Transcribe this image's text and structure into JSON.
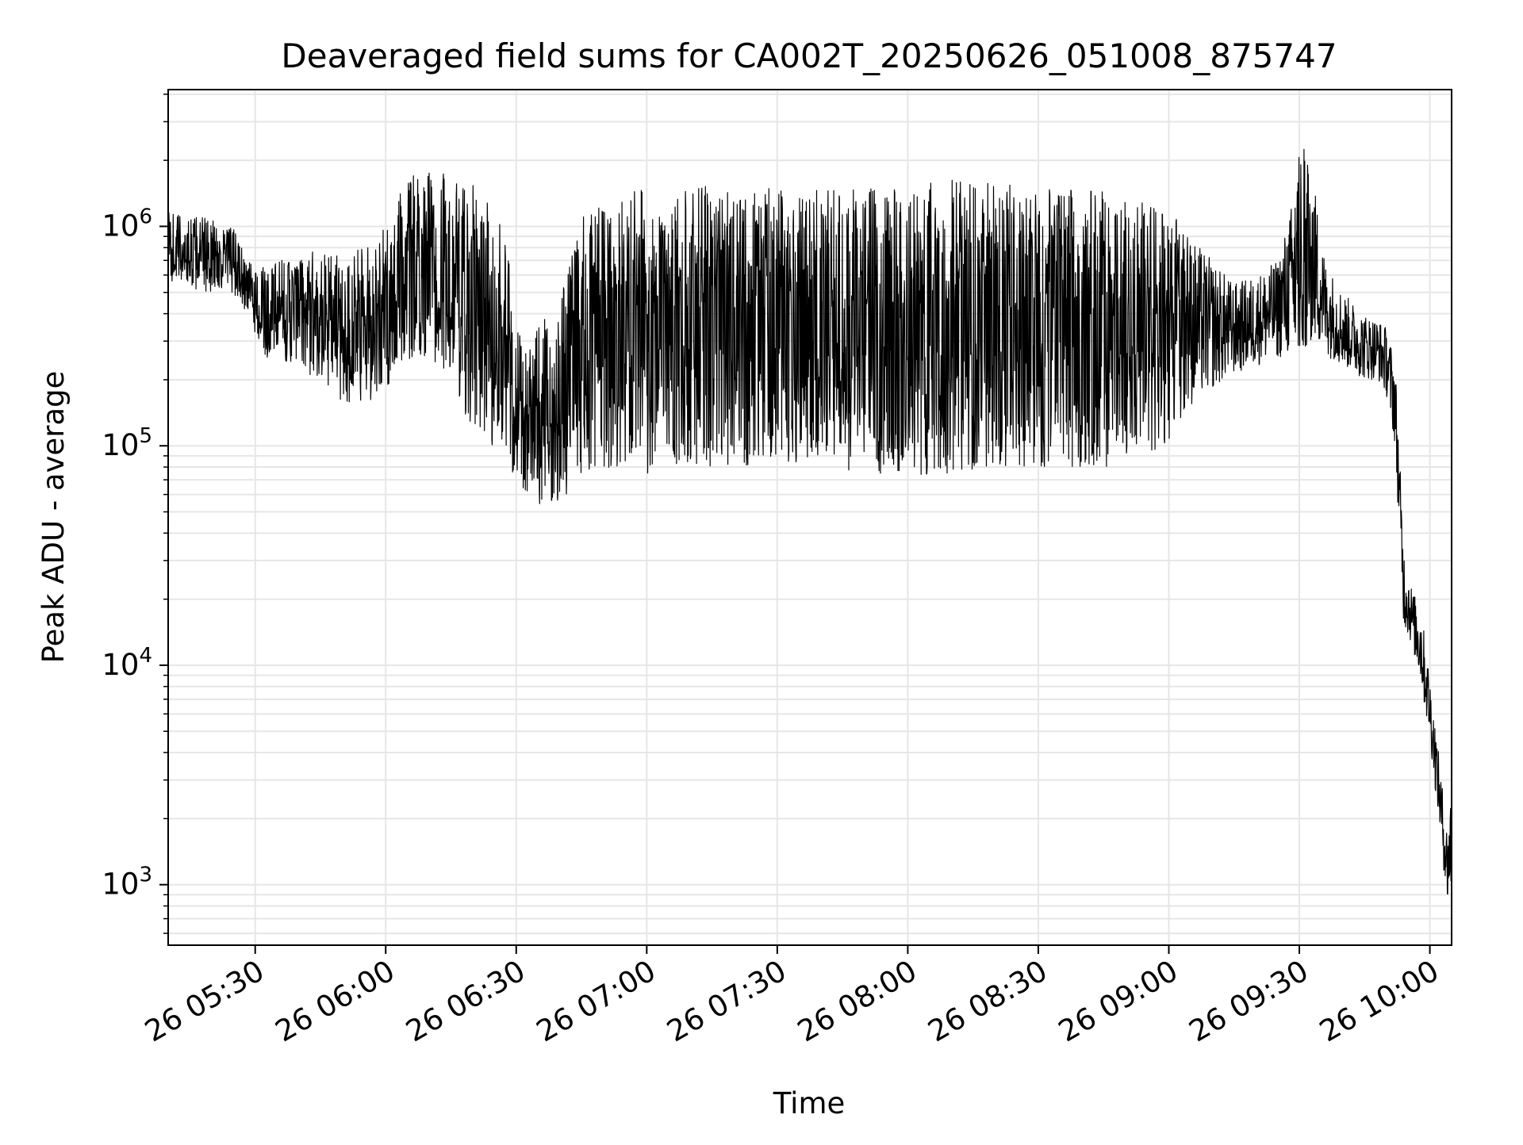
{
  "chart_data": {
    "type": "line",
    "title": "Deaveraged field sums for CA002T_20250626_051008_875747",
    "xlabel": "Time",
    "ylabel": "Peak ADU - average",
    "y_scale": "log",
    "grid": true,
    "legend": "none",
    "line_color": "#000000",
    "grid_color": "#e6e6e6",
    "x_ticks": [
      "2025-06-26 05:30",
      "2025-06-26 06:00",
      "2025-06-26 06:30",
      "2025-06-26 07:00",
      "2025-06-26 07:30",
      "2025-06-26 08:00",
      "2025-06-26 08:30",
      "2025-06-26 09:00",
      "2025-06-26 09:30",
      "2025-06-26 10:00"
    ],
    "x_tick_labels": [
      "26 05:30",
      "26 06:00",
      "26 06:30",
      "26 07:00",
      "26 07:30",
      "26 08:00",
      "26 08:30",
      "26 09:00",
      "26 09:30",
      "26 10:00"
    ],
    "y_ticks": [
      1000,
      10000,
      100000,
      1000000
    ],
    "y_tick_labels": [
      {
        "base": "10",
        "exp": "3"
      },
      {
        "base": "10",
        "exp": "4"
      },
      {
        "base": "10",
        "exp": "5"
      },
      {
        "base": "10",
        "exp": "6"
      }
    ],
    "xlim": [
      "2025-06-26 05:10",
      "2025-06-26 10:05"
    ],
    "ylim": [
      530,
      4200000
    ],
    "series": [
      {
        "x": [
          "2025-06-26 05:10",
          "2025-06-26 05:15",
          "2025-06-26 05:20",
          "2025-06-26 05:25",
          "2025-06-26 05:28",
          "2025-06-26 05:32",
          "2025-06-26 05:36",
          "2025-06-26 05:40",
          "2025-06-26 05:45",
          "2025-06-26 05:50",
          "2025-06-26 05:55",
          "2025-06-26 06:00",
          "2025-06-26 06:05",
          "2025-06-26 06:10",
          "2025-06-26 06:15",
          "2025-06-26 06:20",
          "2025-06-26 06:25",
          "2025-06-26 06:28",
          "2025-06-26 06:31",
          "2025-06-26 06:35",
          "2025-06-26 06:40",
          "2025-06-26 06:45",
          "2025-06-26 06:50",
          "2025-06-26 07:00",
          "2025-06-26 07:10",
          "2025-06-26 07:20",
          "2025-06-26 07:30",
          "2025-06-26 07:40",
          "2025-06-26 07:50",
          "2025-06-26 08:00",
          "2025-06-26 08:10",
          "2025-06-26 08:20",
          "2025-06-26 08:30",
          "2025-06-26 08:40",
          "2025-06-26 08:50",
          "2025-06-26 09:00",
          "2025-06-26 09:05",
          "2025-06-26 09:10",
          "2025-06-26 09:15",
          "2025-06-26 09:20",
          "2025-06-26 09:25",
          "2025-06-26 09:28",
          "2025-06-26 09:30",
          "2025-06-26 09:33",
          "2025-06-26 09:36",
          "2025-06-26 09:40",
          "2025-06-26 09:45",
          "2025-06-26 09:48",
          "2025-06-26 09:50",
          "2025-06-26 09:52",
          "2025-06-26 09:54",
          "2025-06-26 09:56",
          "2025-06-26 09:58",
          "2025-06-26 10:00",
          "2025-06-26 10:02",
          "2025-06-26 10:04",
          "2025-06-26 10:05"
        ],
        "low": [
          550000,
          520000,
          500000,
          480000,
          400000,
          250000,
          250000,
          220000,
          200000,
          150000,
          150000,
          180000,
          250000,
          250000,
          200000,
          110000,
          100000,
          85000,
          60000,
          50000,
          55000,
          70000,
          80000,
          75000,
          80000,
          80000,
          80000,
          80000,
          75000,
          70000,
          75000,
          80000,
          80000,
          80000,
          80000,
          100000,
          150000,
          180000,
          210000,
          230000,
          250000,
          250000,
          260000,
          300000,
          260000,
          230000,
          200000,
          200000,
          170000,
          100000,
          15000,
          12000,
          8000,
          4500,
          2000,
          800,
          900
        ],
        "high": [
          1200000,
          1100000,
          1100000,
          1000000,
          700000,
          650000,
          700000,
          750000,
          800000,
          750000,
          800000,
          1000000,
          1700000,
          1800000,
          1800000,
          1600000,
          1300000,
          800000,
          300000,
          350000,
          450000,
          1100000,
          1300000,
          1500000,
          1600000,
          1500000,
          1500000,
          1500000,
          1500000,
          1500000,
          1650000,
          1600000,
          1500000,
          1500000,
          1400000,
          1200000,
          900000,
          700000,
          550000,
          600000,
          700000,
          1200000,
          2600000,
          1800000,
          700000,
          500000,
          400000,
          380000,
          350000,
          250000,
          35000,
          22000,
          18000,
          9000,
          4000,
          1800,
          3000
        ]
      }
    ]
  }
}
